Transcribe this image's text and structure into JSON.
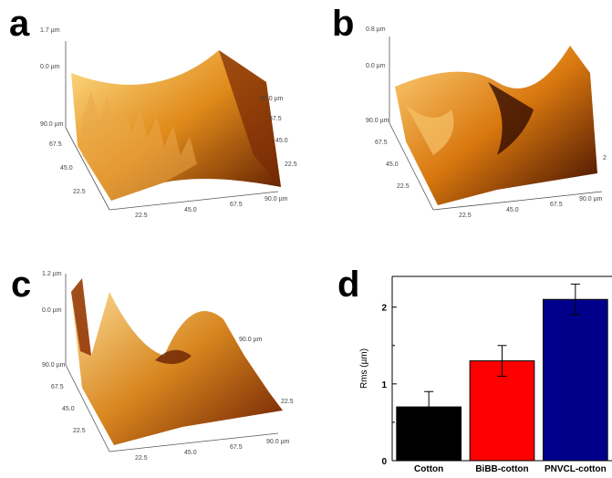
{
  "panels": {
    "a": {
      "letter": "a",
      "z_top": "1.7 µm",
      "z_mid": "0.0 µm",
      "y_ticks": [
        "90.0 µm",
        "67.5",
        "45.0",
        "22.5"
      ],
      "x_ticks": [
        "22.5",
        "45.0",
        "67.5",
        "90.0 µm"
      ],
      "r_ticks": [
        "90.0 µm",
        "67.5",
        "45.0",
        "22.5"
      ],
      "colors": {
        "light": "#ffe08a",
        "mid": "#e08a1a",
        "dark": "#5a1a00"
      }
    },
    "b": {
      "letter": "b",
      "z_top": "0.8 µm",
      "z_mid": "0.0 µm",
      "y_ticks": [
        "90.0 µm",
        "67.5",
        "45.0",
        "22.5"
      ],
      "x_ticks": [
        "22.5",
        "45.0",
        "67.5",
        "90.0 µm"
      ],
      "r_ticks": [
        "2"
      ],
      "colors": {
        "light": "#ffd27a",
        "mid": "#d9780f",
        "dark": "#3a0a00"
      }
    },
    "c": {
      "letter": "c",
      "z_top": "1.2 µm",
      "z_mid": "0.0 µm",
      "y_ticks": [
        "90.0 µm",
        "67.5",
        "45.0",
        "22.5"
      ],
      "x_ticks": [
        "22.5",
        "45.0",
        "67.5",
        "90.0 µm"
      ],
      "r_ticks": [
        "90.0 µm",
        "22.5"
      ],
      "colors": {
        "light": "#ffe3a0",
        "mid": "#d8861f",
        "dark": "#6a1c00"
      }
    },
    "d": {
      "letter": "d"
    }
  },
  "chart_data": {
    "type": "bar",
    "categories": [
      "Cotton",
      "BiBB-cotton",
      "PNVCL-cotton"
    ],
    "values": [
      0.7,
      1.3,
      2.1
    ],
    "errors": [
      0.2,
      0.2,
      0.2
    ],
    "colors": [
      "#000000",
      "#ff0000",
      "#00008b"
    ],
    "ylabel": "Rms (µm)",
    "ylim": [
      0,
      2.4
    ],
    "yticks": [
      "0",
      "1",
      "2"
    ],
    "ytick_values": [
      0,
      1,
      2
    ]
  }
}
